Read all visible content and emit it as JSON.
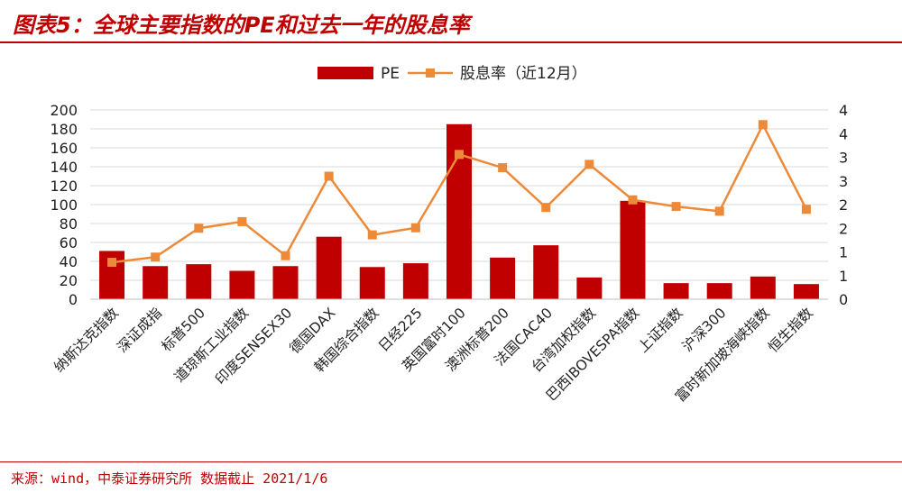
{
  "header": {
    "title": "图表5：全球主要指数的PE和过去一年的股息率"
  },
  "footer": {
    "source": "来源：wind，中泰证券研究所  数据截止 2021/1/6"
  },
  "colors": {
    "accent": "#c00000",
    "bar": "#c00000",
    "line": "#ed8a3a"
  },
  "chart_data": {
    "type": "bar",
    "categories": [
      "纳斯达克指数",
      "深证成指",
      "标普500",
      "道琼斯工业指数",
      "印度SENSEX30",
      "德国DAX",
      "韩国综合指数",
      "日经225",
      "英国富时100",
      "澳洲标普200",
      "法国CAC40",
      "台湾加权指数",
      "巴西IBOVESPA指数",
      "上证指数",
      "沪深300",
      "富时新加坡海峡指数",
      "恒生指数"
    ],
    "series": [
      {
        "name": "PE",
        "type": "bar",
        "axis": "left",
        "values": [
          51,
          35,
          37,
          30,
          35,
          66,
          34,
          38,
          185,
          44,
          57,
          23,
          104,
          17,
          17,
          24,
          16
        ]
      },
      {
        "name": "股息率（近12月）",
        "type": "line",
        "axis": "right",
        "values": [
          0.78,
          0.89,
          1.5,
          1.64,
          0.92,
          2.6,
          1.36,
          1.51,
          3.06,
          2.78,
          1.94,
          2.85,
          2.1,
          1.96,
          1.86,
          3.69,
          1.9
        ]
      }
    ],
    "y_left": {
      "min": 0,
      "max": 200,
      "step": 20,
      "tick_labels": [
        "0",
        "20",
        "40",
        "60",
        "80",
        "100",
        "120",
        "140",
        "160",
        "180",
        "200"
      ]
    },
    "y_right": {
      "min": 0,
      "max": 4,
      "step": 0.5,
      "tick_labels": [
        "0",
        "1",
        "1",
        "2",
        "2",
        "3",
        "3",
        "4",
        "4"
      ]
    },
    "legend": {
      "position": "top-center"
    },
    "grid": "horizontal"
  }
}
